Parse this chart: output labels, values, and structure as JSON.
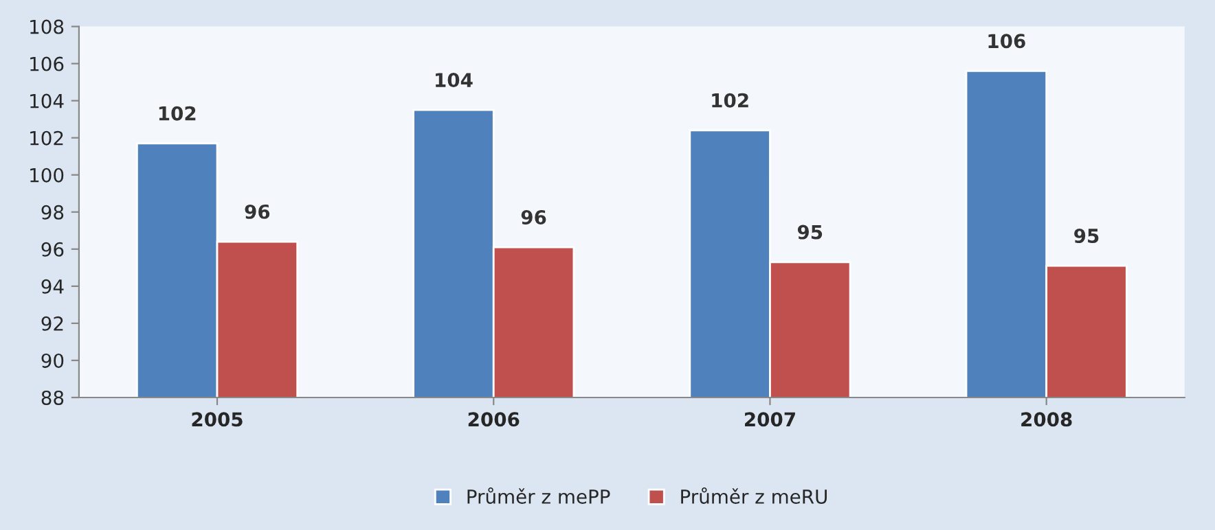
{
  "chart_data": {
    "type": "bar",
    "categories": [
      "2005",
      "2006",
      "2007",
      "2008"
    ],
    "series": [
      {
        "name": "Průměr z mePP",
        "color": "#4f81bd",
        "values": [
          101.7,
          103.5,
          102.4,
          105.6
        ],
        "value_labels": [
          "102",
          "104",
          "102",
          "106"
        ]
      },
      {
        "name": "Průměr z meRU",
        "color": "#c0504d",
        "values": [
          96.4,
          96.1,
          95.3,
          95.1
        ],
        "value_labels": [
          "96",
          "96",
          "95",
          "95"
        ]
      }
    ],
    "ylim": [
      88,
      108
    ],
    "yticks": [
      88,
      90,
      92,
      94,
      96,
      98,
      100,
      102,
      104,
      106,
      108
    ],
    "grid": false,
    "legend": "bottom"
  }
}
